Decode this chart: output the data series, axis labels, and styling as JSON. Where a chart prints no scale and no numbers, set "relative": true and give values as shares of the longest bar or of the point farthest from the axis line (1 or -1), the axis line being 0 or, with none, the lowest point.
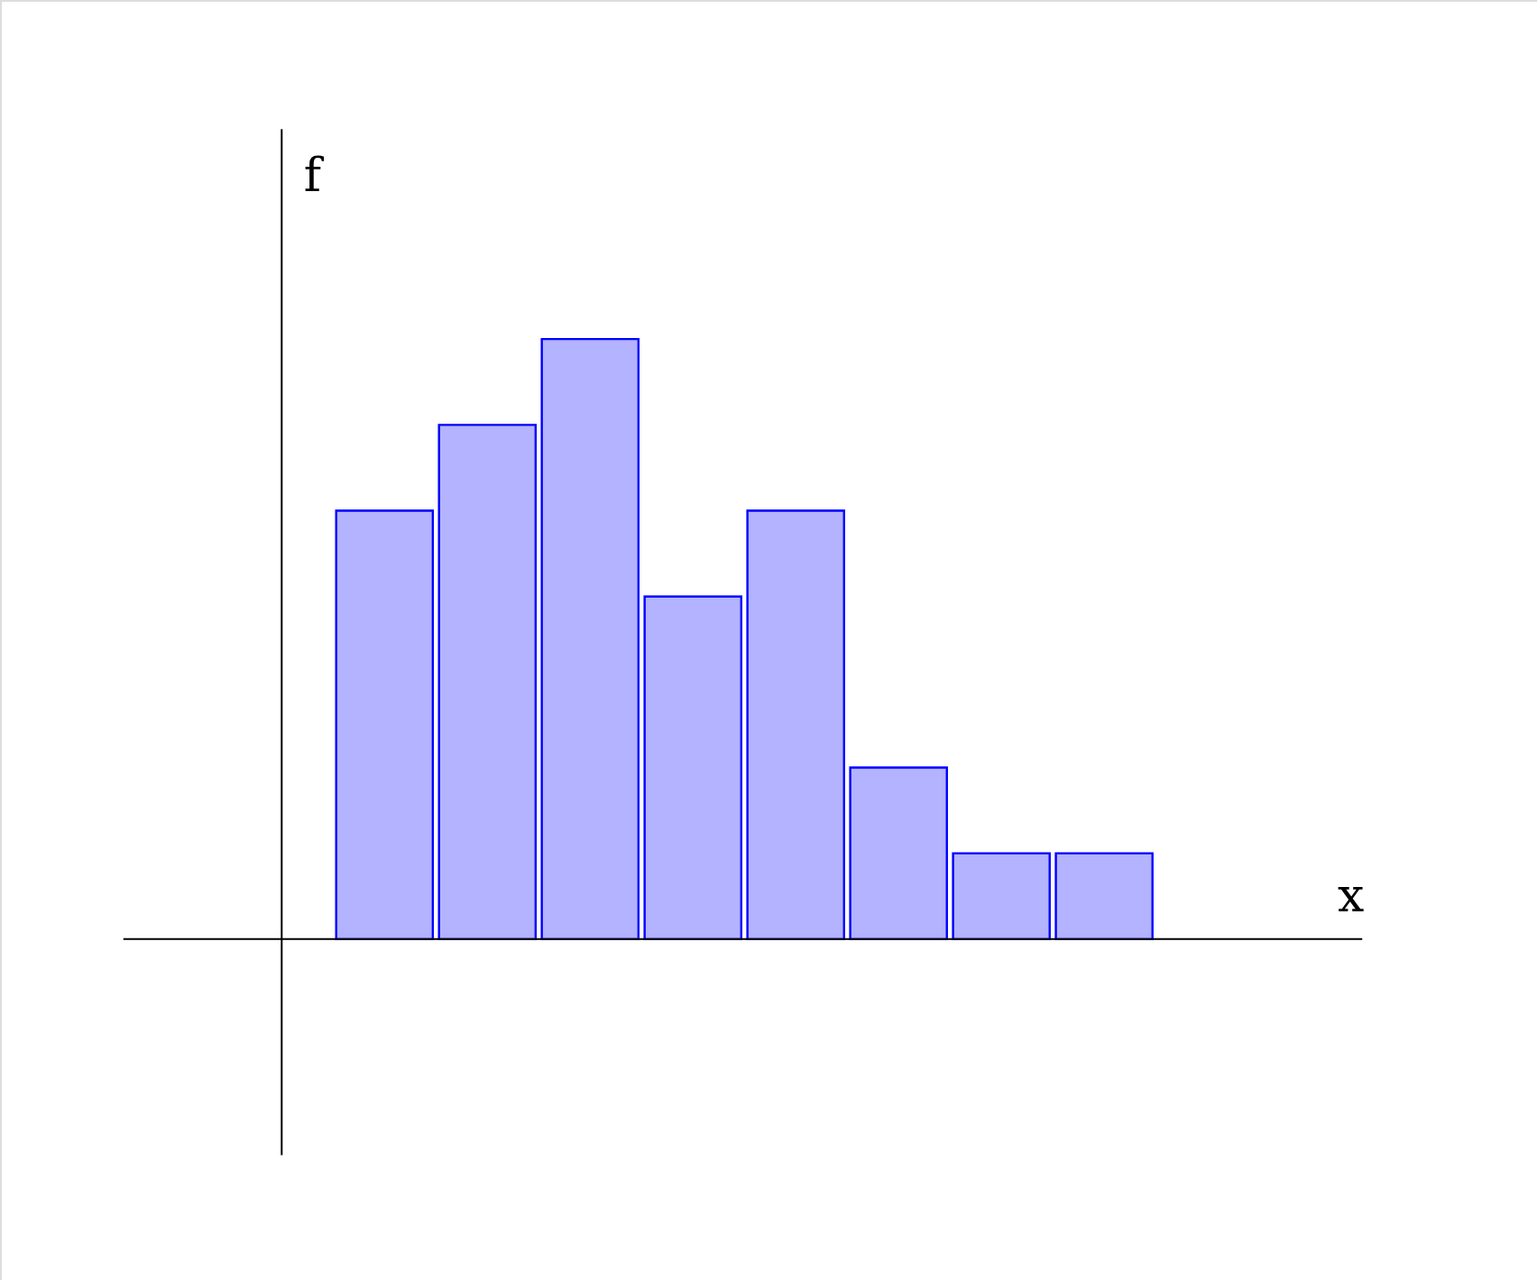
{
  "chart_data": {
    "type": "bar",
    "xlabel": "x",
    "ylabel": "f",
    "relative": true,
    "categories": [
      null,
      null,
      null,
      null,
      null,
      null,
      null,
      null
    ],
    "values": [
      0.714,
      0.857,
      1,
      0.571,
      0.714,
      0.286,
      0.143,
      0.143
    ],
    "color": "#b3b3ff"
  }
}
